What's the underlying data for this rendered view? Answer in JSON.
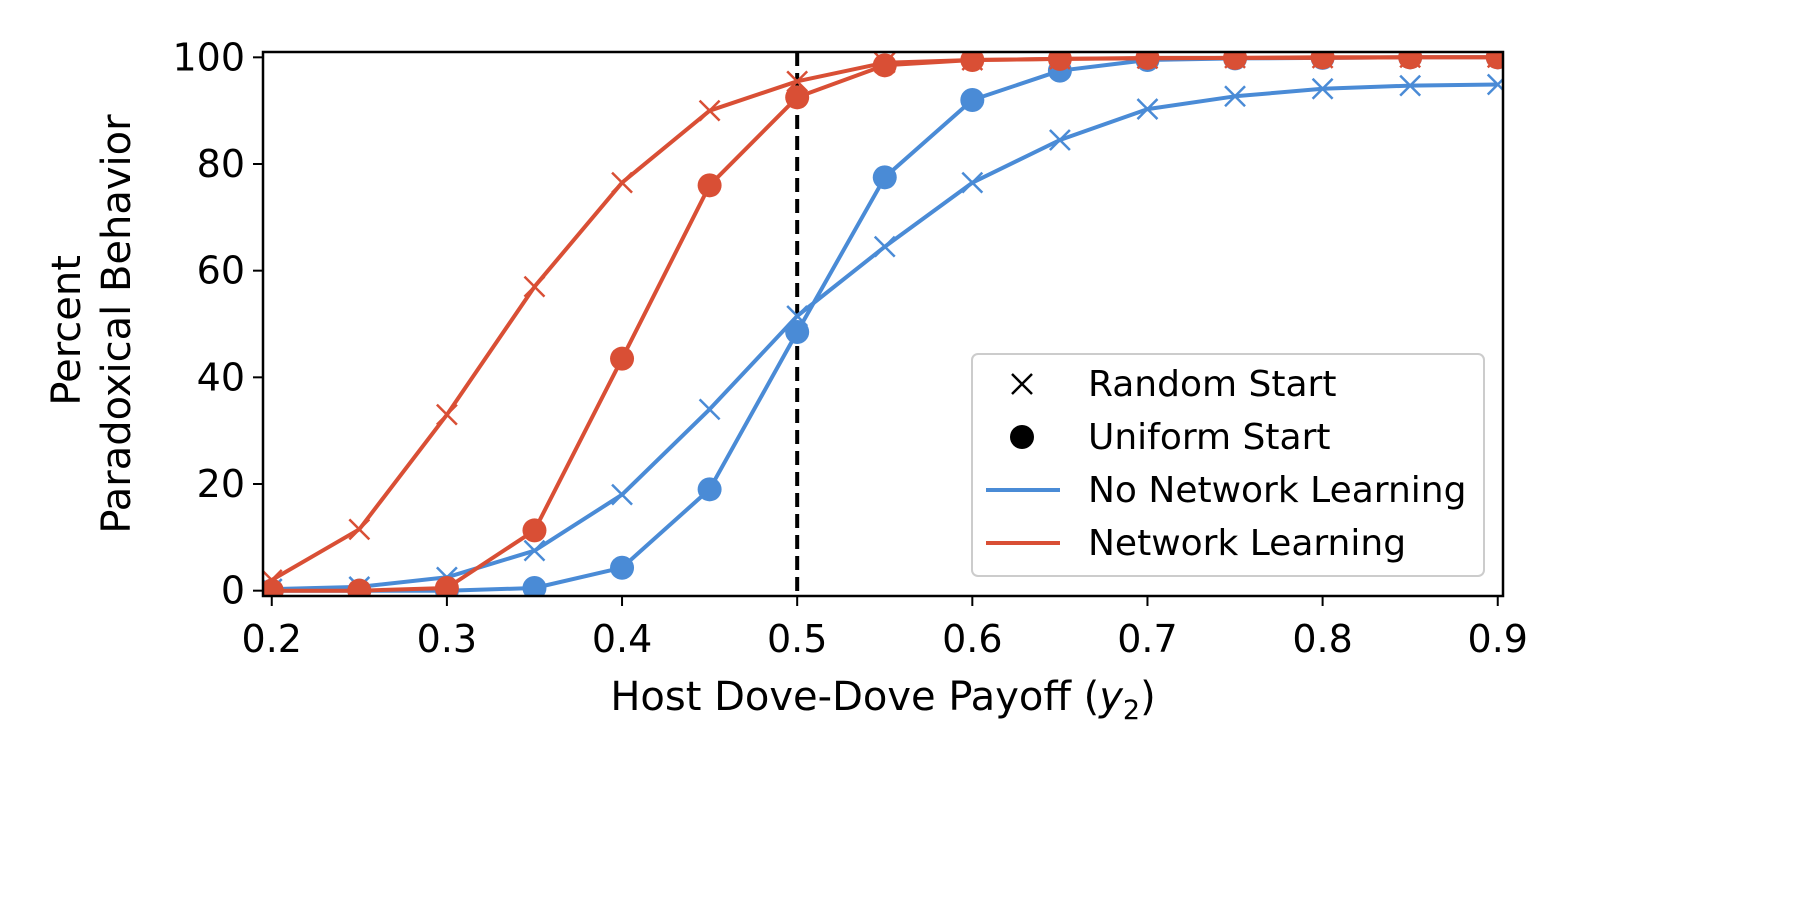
{
  "chart_data": {
    "type": "line",
    "title": "",
    "xlabel_prefix": "Host Dove-Dove Payoff (",
    "xlabel_var": "y",
    "xlabel_sub": "2",
    "xlabel_suffix": ")",
    "ylabel_lines": [
      "Percent",
      "Paradoxical Behavior"
    ],
    "xlim": [
      0.195,
      0.903
    ],
    "ylim": [
      -1,
      101
    ],
    "xticks": [
      0.2,
      0.3,
      0.4,
      0.5,
      0.6,
      0.7,
      0.8,
      0.9
    ],
    "xtick_labels": [
      "0.2",
      "0.3",
      "0.4",
      "0.5",
      "0.6",
      "0.7",
      "0.8",
      "0.9"
    ],
    "yticks": [
      0,
      20,
      40,
      60,
      80,
      100
    ],
    "ytick_labels": [
      "0",
      "20",
      "40",
      "60",
      "80",
      "100"
    ],
    "vline_x": 0.5,
    "x": [
      0.2,
      0.25,
      0.3,
      0.35,
      0.4,
      0.45,
      0.5,
      0.55,
      0.6,
      0.65,
      0.7,
      0.75,
      0.8,
      0.85,
      0.9
    ],
    "series": [
      {
        "name": "No Network Learning, Random Start",
        "color": "#4a8bd6",
        "marker": "x",
        "values": [
          0.3,
          0.7,
          2.5,
          7.5,
          18,
          34,
          51.5,
          64.5,
          76.5,
          84.5,
          90.3,
          92.7,
          94.1,
          94.7,
          94.9
        ]
      },
      {
        "name": "No Network Learning, Uniform Start",
        "color": "#4a8bd6",
        "marker": "o",
        "values": [
          0,
          0,
          0,
          0.5,
          4.3,
          19,
          48.5,
          77.5,
          92,
          97.5,
          99.5,
          99.8,
          99.9,
          100,
          100
        ]
      },
      {
        "name": "Network Learning, Random Start",
        "color": "#d94f35",
        "marker": "x",
        "values": [
          2,
          11.5,
          33,
          57,
          76.5,
          90,
          95.5,
          99,
          99.5,
          99.7,
          99.8,
          99.9,
          99.9,
          100,
          100
        ]
      },
      {
        "name": "Network Learning, Uniform Start",
        "color": "#d94f35",
        "marker": "o",
        "values": [
          0,
          0,
          0.5,
          11.3,
          43.5,
          76,
          92.5,
          98.5,
          99.5,
          99.7,
          99.9,
          99.9,
          100,
          100,
          100
        ]
      }
    ],
    "legend": {
      "position": "lower right",
      "entries": [
        {
          "label": "Random Start",
          "kind": "marker-x",
          "color": "#000000"
        },
        {
          "label": "Uniform Start",
          "kind": "marker-o",
          "color": "#000000"
        },
        {
          "label": "No Network Learning",
          "kind": "line",
          "color": "#4a8bd6"
        },
        {
          "label": "Network Learning",
          "kind": "line",
          "color": "#d94f35"
        }
      ]
    }
  }
}
